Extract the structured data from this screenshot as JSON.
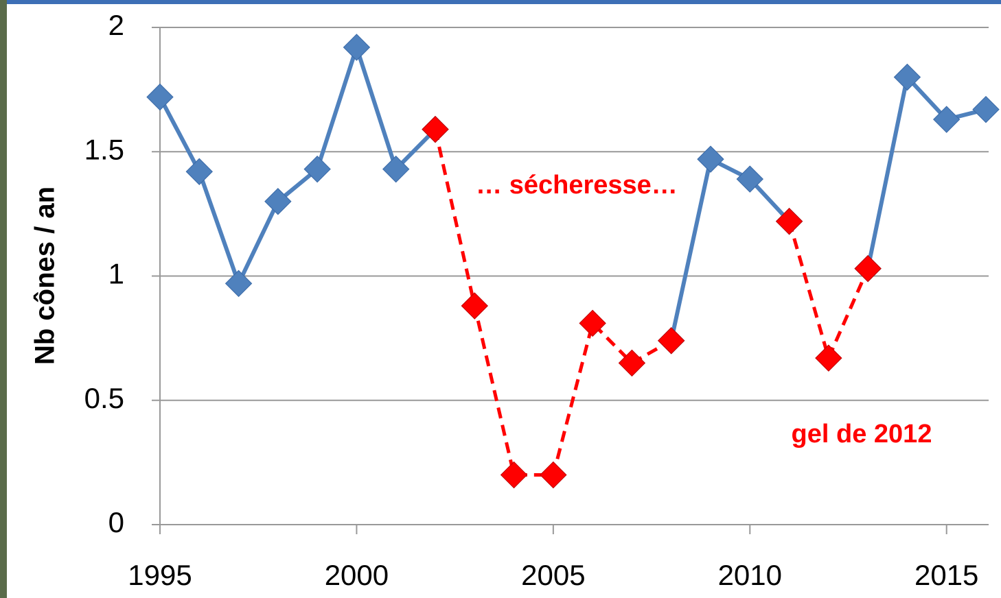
{
  "chart_data": {
    "type": "line",
    "y_label": "Nb cônes / an",
    "annotations": [
      "… sécheresse…",
      "gel de 2012"
    ],
    "x": [
      1995,
      1996,
      1997,
      1998,
      1999,
      2000,
      2001,
      2002,
      2003,
      2004,
      2005,
      2006,
      2007,
      2008,
      2009,
      2010,
      2011,
      2012,
      2013,
      2014,
      2015,
      2016
    ],
    "series": [
      {
        "color": "#4f81bd",
        "values": [
          1.72,
          1.42,
          0.97,
          1.3,
          1.43,
          1.92,
          1.43,
          1.59,
          null,
          null,
          null,
          null,
          null,
          0.74,
          1.47,
          1.39,
          1.22,
          null,
          1.03,
          1.8,
          1.63,
          1.67
        ]
      },
      {
        "color": "#ff0000",
        "values": [
          null,
          null,
          null,
          null,
          null,
          null,
          null,
          1.59,
          0.88,
          0.2,
          0.2,
          0.81,
          0.65,
          0.74,
          null,
          null,
          1.22,
          0.67,
          1.03,
          null,
          null,
          null
        ]
      }
    ],
    "xlim": [
      1995,
      2016
    ],
    "xticks": [
      1995,
      2000,
      2005,
      2010,
      2015
    ],
    "ylim": [
      0,
      2
    ],
    "yticks": [
      0,
      0.5,
      1,
      1.5,
      2
    ],
    "grid": true
  }
}
